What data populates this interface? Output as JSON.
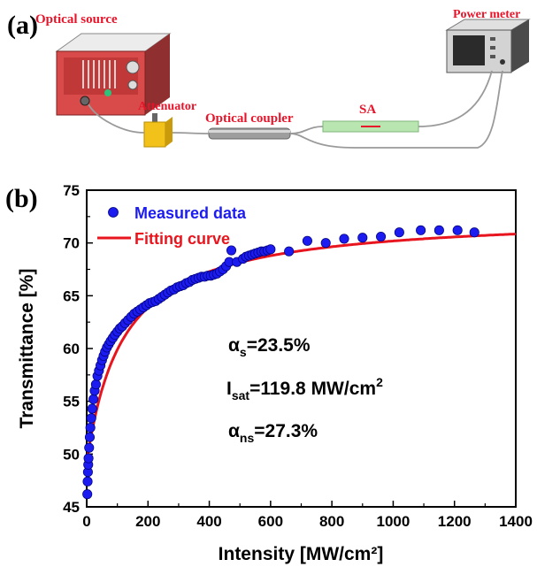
{
  "panel_a": {
    "letter": "(a)",
    "labels": {
      "optical_source": "Optical source",
      "power_meter": "Power meter",
      "attenuator": "Attenuator",
      "optical_coupler": "Optical coupler",
      "sa": "SA"
    },
    "colors": {
      "label": "#e8142a",
      "source_body": "#d94a4a",
      "attenuator": "#f2c21b",
      "sa_tube": "#b9e6b0",
      "fiber": "#9a9a9a"
    }
  },
  "panel_b": {
    "letter": "(b)",
    "annotations": {
      "alpha_s": {
        "prefix": "α",
        "sub": "s",
        "value": "=23.5%"
      },
      "isat": {
        "prefix": "I",
        "sub": "sat",
        "value": "=119.8 MW/cm",
        "sup": "2"
      },
      "alpha_ns": {
        "prefix": "α",
        "sub": "ns",
        "value": "=27.3%"
      }
    }
  },
  "chart_data": {
    "type": "scatter",
    "xlabel": "Intensity [MW/cm²]",
    "ylabel": "Transmittance [%]",
    "xlim": [
      0,
      1400
    ],
    "ylim": [
      45,
      75
    ],
    "xticks": [
      0,
      200,
      400,
      600,
      800,
      1000,
      1200,
      1400
    ],
    "yticks": [
      45,
      50,
      55,
      60,
      65,
      70,
      75
    ],
    "legend_position": "top-left",
    "series": [
      {
        "name": "Measured data",
        "kind": "scatter",
        "color": "#1c1cf0",
        "points": [
          [
            2,
            46.2
          ],
          [
            3,
            47.4
          ],
          [
            4,
            48.3
          ],
          [
            5,
            49.0
          ],
          [
            6,
            49.6
          ],
          [
            8,
            50.6
          ],
          [
            10,
            51.6
          ],
          [
            12,
            52.5
          ],
          [
            15,
            53.4
          ],
          [
            18,
            54.3
          ],
          [
            22,
            55.2
          ],
          [
            26,
            56.0
          ],
          [
            30,
            56.6
          ],
          [
            35,
            57.4
          ],
          [
            40,
            57.9
          ],
          [
            45,
            58.4
          ],
          [
            50,
            58.9
          ],
          [
            55,
            59.3
          ],
          [
            60,
            59.7
          ],
          [
            66,
            60.1
          ],
          [
            72,
            60.4
          ],
          [
            78,
            60.7
          ],
          [
            85,
            61.0
          ],
          [
            92,
            61.3
          ],
          [
            100,
            61.6
          ],
          [
            108,
            61.9
          ],
          [
            116,
            62.1
          ],
          [
            125,
            62.4
          ],
          [
            135,
            62.7
          ],
          [
            145,
            63.0
          ],
          [
            155,
            63.3
          ],
          [
            165,
            63.5
          ],
          [
            175,
            63.7
          ],
          [
            185,
            63.9
          ],
          [
            195,
            64.1
          ],
          [
            205,
            64.3
          ],
          [
            215,
            64.4
          ],
          [
            225,
            64.5
          ],
          [
            235,
            64.7
          ],
          [
            245,
            64.9
          ],
          [
            255,
            65.1
          ],
          [
            265,
            65.3
          ],
          [
            275,
            65.5
          ],
          [
            285,
            65.6
          ],
          [
            295,
            65.8
          ],
          [
            305,
            65.9
          ],
          [
            315,
            66.0
          ],
          [
            325,
            66.2
          ],
          [
            335,
            66.3
          ],
          [
            345,
            66.5
          ],
          [
            355,
            66.6
          ],
          [
            365,
            66.7
          ],
          [
            375,
            66.8
          ],
          [
            385,
            66.8
          ],
          [
            395,
            66.9
          ],
          [
            405,
            66.9
          ],
          [
            415,
            67.0
          ],
          [
            425,
            67.1
          ],
          [
            435,
            67.3
          ],
          [
            445,
            67.5
          ],
          [
            455,
            67.8
          ],
          [
            465,
            68.2
          ],
          [
            472,
            69.3
          ],
          [
            490,
            68.2
          ],
          [
            510,
            68.5
          ],
          [
            520,
            68.7
          ],
          [
            530,
            68.8
          ],
          [
            540,
            68.9
          ],
          [
            550,
            69.0
          ],
          [
            560,
            69.1
          ],
          [
            570,
            69.2
          ],
          [
            580,
            69.2
          ],
          [
            590,
            69.3
          ],
          [
            600,
            69.4
          ],
          [
            660,
            69.2
          ],
          [
            720,
            70.2
          ],
          [
            780,
            70.0
          ],
          [
            840,
            70.4
          ],
          [
            900,
            70.5
          ],
          [
            960,
            70.6
          ],
          [
            1020,
            71.0
          ],
          [
            1090,
            71.2
          ],
          [
            1150,
            71.2
          ],
          [
            1210,
            71.2
          ],
          [
            1265,
            71.0
          ]
        ]
      },
      {
        "name": "Fitting curve",
        "kind": "line",
        "color": "#e8141e",
        "model": {
          "alpha_s": 23.5,
          "isat": 119.8,
          "alpha_ns": 27.3
        }
      }
    ]
  }
}
